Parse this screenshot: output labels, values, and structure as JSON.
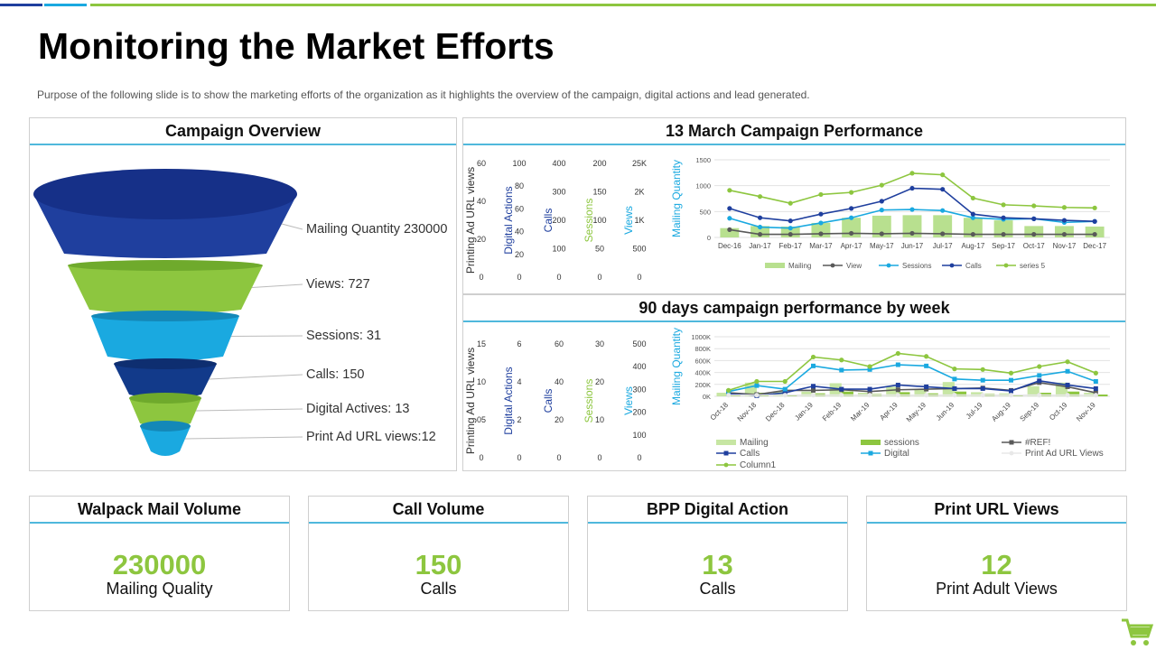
{
  "colors": {
    "blue_dark": "#1f3f9e",
    "blue_bar": "#123a8a",
    "green": "#8dc63f",
    "cyan": "#1aa9e0",
    "grey_line": "#595959",
    "accent_line": "#4fb8dc"
  },
  "page": {
    "title": "Monitoring the Market Efforts",
    "subtitle": "Purpose of the following  slide is to show the marketing efforts of the organization  as it highlights the overview  of the campaign, digital actions and lead generated."
  },
  "campaign_overview": {
    "title": "Campaign Overview",
    "labels": [
      "Mailing  Quantity 230000",
      "Views: 727",
      "Sessions: 31",
      "Calls: 150",
      "Digital Actives: 13",
      "Print Ad URL views:12"
    ]
  },
  "chart_data": [
    {
      "type": "funnel",
      "title": "Campaign Overview",
      "categories": [
        "Mailing Quantity",
        "Views",
        "Sessions",
        "Calls",
        "Digital Actives",
        "Print Ad URL views"
      ],
      "values": [
        230000,
        727,
        31,
        150,
        13,
        12
      ]
    },
    {
      "type": "line",
      "title": "13 March Campaign Performance",
      "categories": [
        "Dec-16",
        "Jan-17",
        "Feb-17",
        "Mar-17",
        "Apr-17",
        "May-17",
        "Jun-17",
        "Jul-17",
        "Aug-17",
        "Sep-17",
        "Oct-17",
        "Nov-17",
        "Dec-17"
      ],
      "ylabel": "Mailing Quantity",
      "ylim": [
        0,
        1500
      ],
      "yticks": [
        "1500",
        "1000",
        "500",
        "0"
      ],
      "series": [
        {
          "name": "Mailing",
          "kind": "bar",
          "color": "#b8e08f",
          "values": [
            180,
            220,
            210,
            280,
            380,
            420,
            430,
            430,
            380,
            330,
            220,
            220,
            210
          ]
        },
        {
          "name": "View",
          "kind": "line",
          "color": "#595959",
          "values": [
            150,
            60,
            60,
            70,
            80,
            70,
            80,
            70,
            60,
            60,
            60,
            60,
            60
          ]
        },
        {
          "name": "Sessions",
          "kind": "line",
          "color": "#1aa9e0",
          "values": [
            370,
            200,
            180,
            280,
            380,
            530,
            540,
            520,
            380,
            350,
            360,
            290,
            310
          ]
        },
        {
          "name": "Calls",
          "kind": "line",
          "color": "#1f3f9e",
          "values": [
            560,
            380,
            320,
            450,
            560,
            700,
            950,
            930,
            450,
            380,
            360,
            330,
            310
          ]
        },
        {
          "name": "series 5",
          "kind": "line",
          "color": "#8dc63f",
          "values": [
            910,
            790,
            660,
            830,
            870,
            1010,
            1240,
            1210,
            760,
            630,
            610,
            580,
            570
          ]
        }
      ],
      "left_axes": [
        {
          "label": "Printing Ad URL views",
          "color": "#333333",
          "ticks": [
            "60",
            "40",
            "20",
            "0"
          ]
        },
        {
          "label": "Digital Actions",
          "color": "#1f3f9e",
          "ticks": [
            "100",
            "80",
            "60",
            "40",
            "20",
            "0"
          ]
        },
        {
          "label": "Calls",
          "color": "#1f3f9e",
          "ticks": [
            "400",
            "300",
            "200",
            "100",
            "0"
          ]
        },
        {
          "label": "Sessions",
          "color": "#8dc63f",
          "ticks": [
            "200",
            "150",
            "100",
            "50",
            "0"
          ]
        },
        {
          "label": "Views",
          "color": "#1aa9e0",
          "ticks": [
            "25K",
            "2K",
            "1K",
            "500",
            "0"
          ]
        }
      ]
    },
    {
      "type": "line",
      "title": "90 days campaign performance by week",
      "categories": [
        "Oct-18",
        "Nov-18",
        "Dec-18",
        "Jan-19",
        "Feb-19",
        "Mar-19",
        "Apr-19",
        "May-19",
        "Jun-19",
        "Jul-19",
        "Aug-19",
        "Sep-19",
        "Oct-19",
        "Nov-19"
      ],
      "ylabel": "Mailing Quantity",
      "ylim": [
        0,
        1000
      ],
      "yticks": [
        "1000K",
        "800K",
        "600K",
        "400K",
        "200K",
        "0K"
      ],
      "series": [
        {
          "name": "Mailing",
          "kind": "bar",
          "color": "#c7e6a3",
          "values": [
            60,
            230,
            80,
            80,
            220,
            60,
            160,
            120,
            240,
            70,
            50,
            170,
            230,
            60
          ]
        },
        {
          "name": "sessions",
          "kind": "bar",
          "color": "#8dc63f",
          "values": [
            30,
            60,
            30,
            50,
            80,
            40,
            70,
            50,
            80,
            40,
            30,
            60,
            80,
            30
          ]
        },
        {
          "name": "#REF!",
          "kind": "line",
          "color": "#595959",
          "values": [
            60,
            30,
            100,
            100,
            110,
            80,
            110,
            120,
            130,
            140,
            100,
            230,
            160,
            60
          ]
        },
        {
          "name": "Calls",
          "kind": "line",
          "color": "#1f3f9e",
          "values": [
            40,
            10,
            60,
            170,
            120,
            120,
            190,
            160,
            130,
            130,
            90,
            260,
            190,
            130
          ]
        },
        {
          "name": "Digital",
          "kind": "line",
          "color": "#1aa9e0",
          "values": [
            80,
            180,
            120,
            510,
            440,
            450,
            530,
            510,
            290,
            270,
            270,
            350,
            420,
            250
          ]
        },
        {
          "name": "Print Ad URL Views",
          "kind": "line",
          "color": "#e8e8e8",
          "values": [
            20,
            20,
            20,
            20,
            20,
            20,
            20,
            20,
            20,
            20,
            20,
            20,
            20,
            20
          ]
        },
        {
          "name": "Column1",
          "kind": "line",
          "color": "#8dc63f",
          "values": [
            100,
            250,
            250,
            660,
            610,
            500,
            720,
            670,
            460,
            450,
            390,
            500,
            580,
            390
          ]
        }
      ],
      "left_axes": [
        {
          "label": "Printing Ad URL  views",
          "color": "#333333",
          "ticks": [
            "15",
            "10",
            "05",
            "0"
          ]
        },
        {
          "label": "Digital Actions",
          "color": "#1f3f9e",
          "ticks": [
            "6",
            "4",
            "2",
            "0"
          ]
        },
        {
          "label": "Calls",
          "color": "#1f3f9e",
          "ticks": [
            "60",
            "40",
            "20",
            "0"
          ]
        },
        {
          "label": "Sessions",
          "color": "#8dc63f",
          "ticks": [
            "30",
            "20",
            "10",
            "0"
          ]
        },
        {
          "label": "Views",
          "color": "#1aa9e0",
          "ticks": [
            "500",
            "400",
            "300",
            "200",
            "100",
            "0"
          ]
        }
      ]
    }
  ],
  "kpis": [
    {
      "title": "Walpack Mail Volume",
      "value": "230000",
      "caption": "Mailing Quality"
    },
    {
      "title": "Call Volume",
      "value": "150",
      "caption": "Calls"
    },
    {
      "title": "BPP Digital Action",
      "value": "13",
      "caption": "Calls"
    },
    {
      "title": "Print URL Views",
      "value": "12",
      "caption": "Print Adult Views"
    }
  ],
  "icons": {
    "cart": "shopping-cart-icon"
  }
}
